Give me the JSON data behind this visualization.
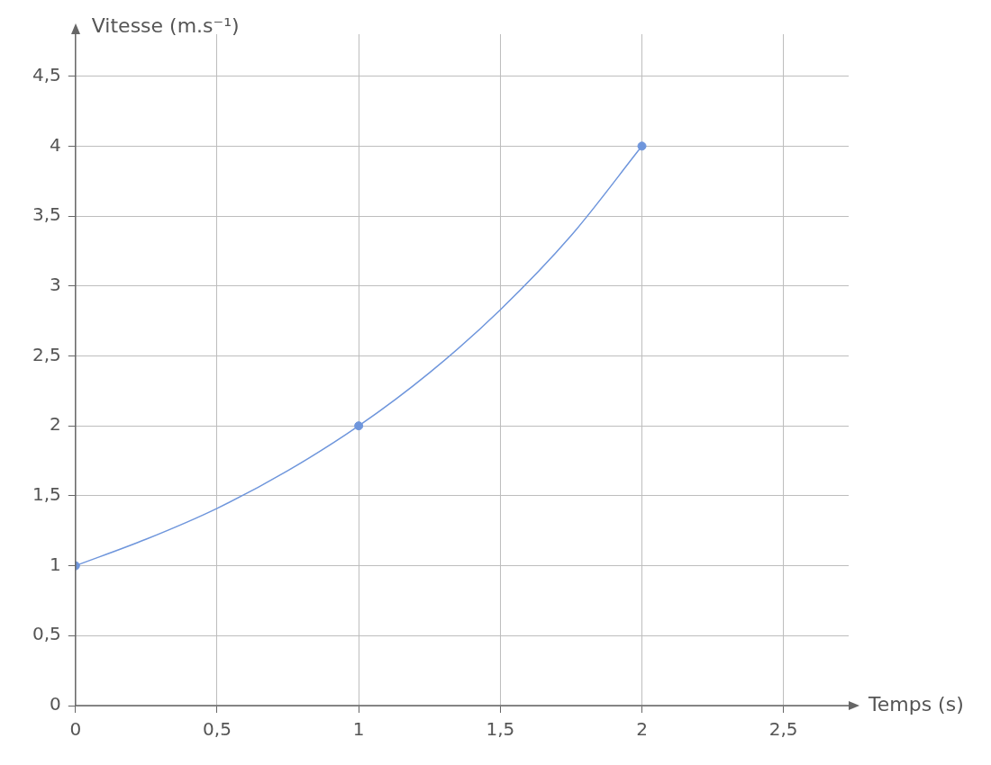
{
  "chart_data": {
    "type": "line",
    "xlabel": "Temps (s)",
    "ylabel": "Vitesse (m.s⁻¹)",
    "xlim": [
      0,
      2.73
    ],
    "ylim": [
      0,
      4.8
    ],
    "xticks": [
      0,
      {
        "value": 0.5,
        "label": "0,5"
      },
      1,
      {
        "value": 1.5,
        "label": "1,5"
      },
      2,
      {
        "value": 2.5,
        "label": "2,5"
      }
    ],
    "yticks": [
      0,
      {
        "value": 0.5,
        "label": "0,5"
      },
      1,
      {
        "value": 1.5,
        "label": "1,5"
      },
      2,
      {
        "value": 2.5,
        "label": "2,5"
      },
      3,
      {
        "value": 3.5,
        "label": "3,5"
      },
      4,
      {
        "value": 4.5,
        "label": "4,5"
      }
    ],
    "grid": true,
    "series": [
      {
        "type": "line",
        "marker": "none",
        "color": "#6f96dc",
        "x": [
          0,
          0.25,
          0.5,
          0.75,
          1,
          1.25,
          1.5,
          1.75,
          2
        ],
        "values": [
          1,
          1.19,
          1.41,
          1.68,
          2,
          2.38,
          2.83,
          3.36,
          4
        ]
      },
      {
        "type": "scatter",
        "marker": "circle",
        "color": "#6f96dc",
        "x": [
          0,
          1,
          2
        ],
        "values": [
          1,
          2,
          4
        ]
      }
    ]
  }
}
